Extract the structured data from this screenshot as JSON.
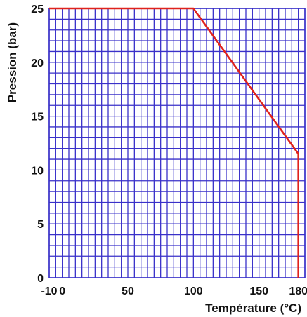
{
  "chart_data": {
    "type": "line",
    "title": "",
    "xlabel": "Température (°C)",
    "ylabel": "Pression  (bar)",
    "xlim": [
      -10,
      185
    ],
    "ylim": [
      0,
      25
    ],
    "x_tick_labels": [
      {
        "value": -10,
        "label": "-10"
      },
      {
        "value": 0,
        "label": "0"
      },
      {
        "value": 50,
        "label": "50"
      },
      {
        "value": 100,
        "label": "100"
      },
      {
        "value": 150,
        "label": "150"
      },
      {
        "value": 180,
        "label": "180"
      }
    ],
    "y_tick_labels": [
      {
        "value": 0,
        "label": "0"
      },
      {
        "value": 5,
        "label": "5"
      },
      {
        "value": 10,
        "label": "10"
      },
      {
        "value": 15,
        "label": "15"
      },
      {
        "value": 20,
        "label": "20"
      },
      {
        "value": 25,
        "label": "25"
      }
    ],
    "grid": true,
    "series": [
      {
        "x": [
          -10,
          100,
          180,
          180
        ],
        "y": [
          25,
          25,
          11.5,
          0
        ]
      }
    ],
    "colors": {
      "grid": "#3a31c9",
      "series": "#e0221c",
      "text": "#111111"
    }
  }
}
